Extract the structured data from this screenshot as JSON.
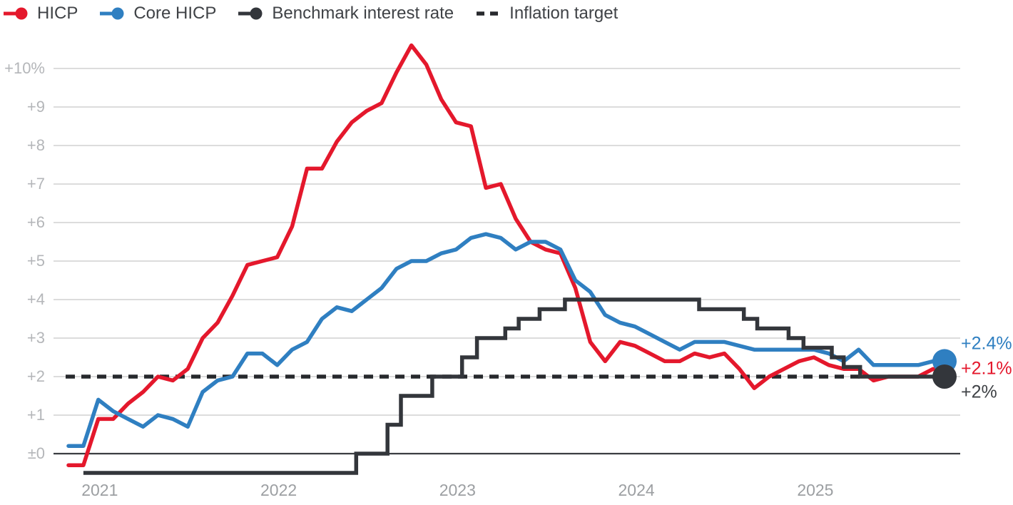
{
  "legend": {
    "items": [
      {
        "label": "HICP",
        "key": "hicp",
        "glyph": "line-dot"
      },
      {
        "label": "Core HICP",
        "key": "core_hicp",
        "glyph": "line-dot"
      },
      {
        "label": "Benchmark interest rate",
        "key": "benchmark",
        "glyph": "line-dot"
      },
      {
        "label": "Inflation target",
        "key": "target",
        "glyph": "dashes"
      }
    ]
  },
  "colors": {
    "hicp": "#e4182c",
    "core_hicp": "#2f7fc1",
    "benchmark": "#33363b",
    "target": "#27292d",
    "grid": "#d7d7d7",
    "zero_line": "#3a3d41",
    "y_label": "#b4b6b9",
    "x_label": "#9c9fa2",
    "legend_text": "#3f4246"
  },
  "end_labels": [
    {
      "text": "+2.4%",
      "series": "core_hicp"
    },
    {
      "text": "+2.1%",
      "series": "hicp"
    },
    {
      "text": "+2%",
      "series": "benchmark"
    }
  ],
  "chart_data": {
    "type": "line",
    "title": "",
    "x_axis": {
      "ticks": [
        "2021",
        "2022",
        "2023",
        "2024",
        "2025"
      ],
      "start_month": "2020-11",
      "end_month": "2025-10",
      "months_per_point": 1
    },
    "y_axis": {
      "unit": "%",
      "ticks": [
        "+10%",
        "+9",
        "+8",
        "+7",
        "+6",
        "+5",
        "+4",
        "+3",
        "+2",
        "+1",
        "±0"
      ],
      "tick_values": [
        10,
        9,
        8,
        7,
        6,
        5,
        4,
        3,
        2,
        1,
        0
      ],
      "range": [
        -0.75,
        10.8
      ],
      "grid": true
    },
    "legend_position": "top-left",
    "series": [
      {
        "name": "HICP",
        "key": "hicp",
        "end_value": 2.1,
        "monthly_values": [
          -0.3,
          -0.3,
          0.9,
          0.9,
          1.3,
          1.6,
          2.0,
          1.9,
          2.2,
          3.0,
          3.4,
          4.1,
          4.9,
          5.0,
          5.1,
          5.9,
          7.4,
          7.4,
          8.1,
          8.6,
          8.9,
          9.1,
          9.9,
          10.6,
          10.1,
          9.2,
          8.6,
          8.5,
          6.9,
          7.0,
          6.1,
          5.5,
          5.3,
          5.2,
          4.3,
          2.9,
          2.4,
          2.9,
          2.8,
          2.6,
          2.4,
          2.4,
          2.6,
          2.5,
          2.6,
          2.2,
          1.7,
          2.0,
          2.2,
          2.4,
          2.5,
          2.3,
          2.2,
          2.2,
          1.9,
          2.0,
          2.0,
          2.0,
          2.2,
          2.1
        ]
      },
      {
        "name": "Core HICP",
        "key": "core_hicp",
        "end_value": 2.4,
        "monthly_values": [
          0.2,
          0.2,
          1.4,
          1.1,
          0.9,
          0.7,
          1.0,
          0.9,
          0.7,
          1.6,
          1.9,
          2.0,
          2.6,
          2.6,
          2.3,
          2.7,
          2.9,
          3.5,
          3.8,
          3.7,
          4.0,
          4.3,
          4.8,
          5.0,
          5.0,
          5.2,
          5.3,
          5.6,
          5.7,
          5.6,
          5.3,
          5.5,
          5.5,
          5.3,
          4.5,
          4.2,
          3.6,
          3.4,
          3.3,
          3.1,
          2.9,
          2.7,
          2.9,
          2.9,
          2.9,
          2.8,
          2.7,
          2.7,
          2.7,
          2.7,
          2.7,
          2.6,
          2.4,
          2.7,
          2.3,
          2.3,
          2.3,
          2.3,
          2.4,
          2.4
        ]
      }
    ],
    "benchmark_rate_steps": [
      {
        "month_index": 1.0,
        "rate": -0.5
      },
      {
        "month_index": 19.3,
        "rate": 0
      },
      {
        "month_index": 21.4,
        "rate": 0.75
      },
      {
        "month_index": 22.3,
        "rate": 1.5
      },
      {
        "month_index": 24.4,
        "rate": 2.0
      },
      {
        "month_index": 26.4,
        "rate": 2.5
      },
      {
        "month_index": 27.4,
        "rate": 3.0
      },
      {
        "month_index": 29.3,
        "rate": 3.25
      },
      {
        "month_index": 30.2,
        "rate": 3.5
      },
      {
        "month_index": 31.6,
        "rate": 3.75
      },
      {
        "month_index": 33.3,
        "rate": 4.0
      },
      {
        "month_index": 42.3,
        "rate": 3.75
      },
      {
        "month_index": 45.3,
        "rate": 3.5
      },
      {
        "month_index": 46.2,
        "rate": 3.25
      },
      {
        "month_index": 48.3,
        "rate": 3.0
      },
      {
        "month_index": 49.3,
        "rate": 2.75
      },
      {
        "month_index": 51.2,
        "rate": 2.5
      },
      {
        "month_index": 52.0,
        "rate": 2.25
      },
      {
        "month_index": 53.1,
        "rate": 2.0
      }
    ],
    "benchmark_end_value": 2.0,
    "inflation_target_value": 2
  }
}
